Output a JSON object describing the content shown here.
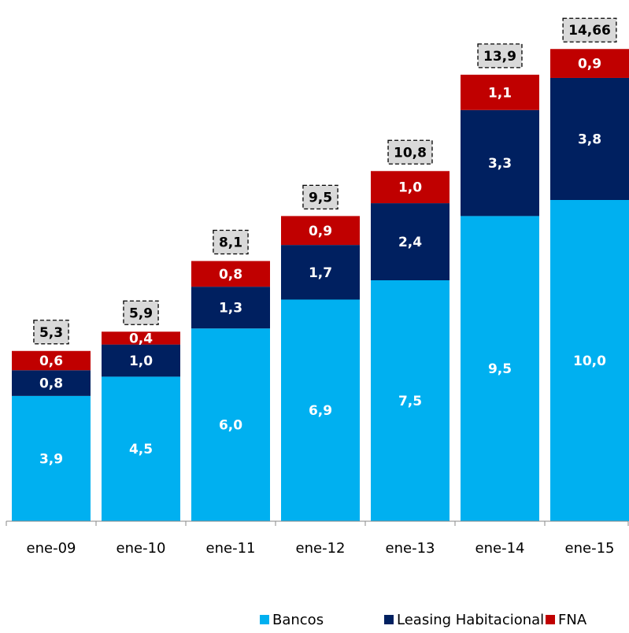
{
  "chart_data": {
    "type": "stacked-bar",
    "categories": [
      "ene-09",
      "ene-10",
      "ene-11",
      "ene-12",
      "ene-13",
      "ene-14",
      "ene-15"
    ],
    "series": [
      {
        "name": "Bancos",
        "color": "#00b0f0",
        "values": [
          3.9,
          4.5,
          6.0,
          6.9,
          7.5,
          9.5,
          10.0
        ],
        "value_labels": [
          "3,9",
          "4,5",
          "6,0",
          "6,9",
          "7,5",
          "9,5",
          "10,0"
        ]
      },
      {
        "name": "Leasing Habitacional",
        "color": "#002060",
        "values": [
          0.8,
          1.0,
          1.3,
          1.7,
          2.4,
          3.3,
          3.8
        ],
        "value_labels": [
          "0,8",
          "1,0",
          "1,3",
          "1,7",
          "2,4",
          "3,3",
          "3,8"
        ]
      },
      {
        "name": "FNA",
        "color": "#c00000",
        "values": [
          0.6,
          0.4,
          0.8,
          0.9,
          1.0,
          1.1,
          0.9
        ],
        "value_labels": [
          "0,6",
          "0,4",
          "0,8",
          "0,9",
          "1,0",
          "1,1",
          "0,9"
        ]
      }
    ],
    "totals": [
      5.3,
      5.9,
      8.1,
      9.5,
      10.8,
      13.9,
      14.66
    ],
    "total_labels": [
      "5,3",
      "5,9",
      "8,1",
      "9,5",
      "10,8",
      "13,9",
      "14,66"
    ],
    "legend": "bottom"
  }
}
